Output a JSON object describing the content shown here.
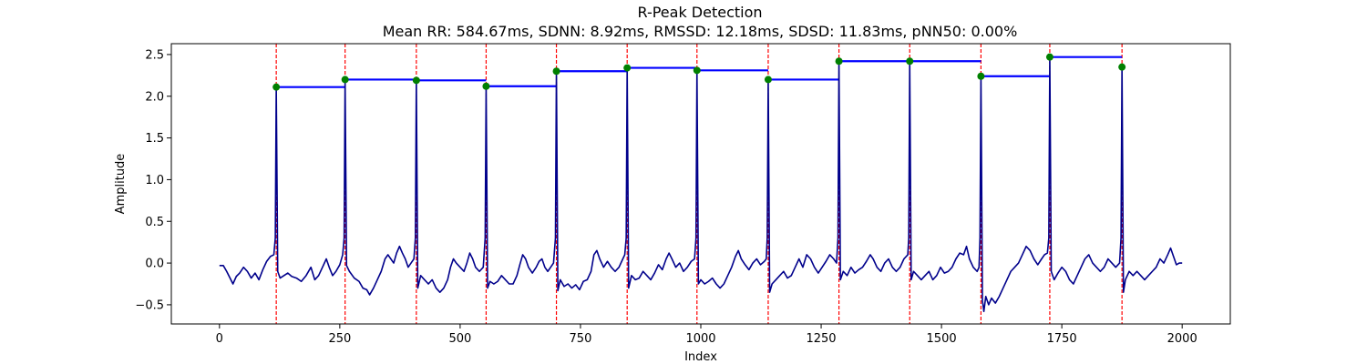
{
  "chart_data": {
    "type": "line",
    "title": "R-Peak Detection",
    "subtitle": "Mean RR: 584.67ms, SDNN: 8.92ms, RMSSD: 12.18ms, SDSD: 11.83ms, pNN50: 0.00%",
    "xlabel": "Index",
    "ylabel": "Amplitude",
    "xlim": [
      -100,
      2100
    ],
    "ylim": [
      -0.73,
      2.63
    ],
    "xticks": [
      0,
      250,
      500,
      750,
      1000,
      1250,
      1500,
      1750,
      2000
    ],
    "yticks": [
      -0.5,
      0.0,
      0.5,
      1.0,
      1.5,
      2.0,
      2.5
    ],
    "xtick_labels": [
      "0",
      "250",
      "500",
      "750",
      "1000",
      "1250",
      "1500",
      "1750",
      "2000"
    ],
    "ytick_labels": [
      "−0.5",
      "0.0",
      "0.5",
      "1.0",
      "1.5",
      "2.0",
      "2.5"
    ],
    "grid": false,
    "colors": {
      "signal": "#00008b",
      "peak_line": "#ff0000",
      "peak_marker": "#008000",
      "rr_segment": "#0000ff"
    },
    "r_peaks": {
      "x": [
        118,
        261,
        409,
        554,
        700,
        847,
        992,
        1140,
        1287,
        1434,
        1582,
        1725,
        1875
      ],
      "y": [
        2.11,
        2.2,
        2.19,
        2.12,
        2.3,
        2.34,
        2.31,
        2.2,
        2.42,
        2.42,
        2.24,
        2.47,
        2.35
      ]
    },
    "signal_points": [
      [
        0,
        -0.03
      ],
      [
        8,
        -0.03
      ],
      [
        15,
        -0.1
      ],
      [
        22,
        -0.18
      ],
      [
        28,
        -0.25
      ],
      [
        35,
        -0.16
      ],
      [
        42,
        -0.12
      ],
      [
        50,
        -0.05
      ],
      [
        58,
        -0.1
      ],
      [
        66,
        -0.18
      ],
      [
        74,
        -0.12
      ],
      [
        82,
        -0.2
      ],
      [
        90,
        -0.08
      ],
      [
        98,
        0.02
      ],
      [
        106,
        0.08
      ],
      [
        113,
        0.1
      ],
      [
        121,
        -0.1
      ],
      [
        126,
        -0.18
      ],
      [
        134,
        -0.15
      ],
      [
        142,
        -0.12
      ],
      [
        150,
        -0.16
      ],
      [
        160,
        -0.18
      ],
      [
        170,
        -0.22
      ],
      [
        180,
        -0.15
      ],
      [
        190,
        -0.05
      ],
      [
        198,
        -0.2
      ],
      [
        206,
        -0.15
      ],
      [
        214,
        -0.05
      ],
      [
        222,
        0.05
      ],
      [
        228,
        -0.05
      ],
      [
        235,
        -0.15
      ],
      [
        242,
        -0.1
      ],
      [
        250,
        -0.02
      ],
      [
        256,
        0.1
      ],
      [
        264,
        -0.03
      ],
      [
        270,
        -0.1
      ],
      [
        280,
        -0.18
      ],
      [
        290,
        -0.22
      ],
      [
        298,
        -0.3
      ],
      [
        306,
        -0.32
      ],
      [
        312,
        -0.38
      ],
      [
        320,
        -0.3
      ],
      [
        328,
        -0.2
      ],
      [
        336,
        -0.1
      ],
      [
        344,
        0.05
      ],
      [
        350,
        0.1
      ],
      [
        356,
        0.05
      ],
      [
        362,
        0.0
      ],
      [
        368,
        0.12
      ],
      [
        374,
        0.2
      ],
      [
        380,
        0.12
      ],
      [
        386,
        0.05
      ],
      [
        392,
        -0.05
      ],
      [
        398,
        0.0
      ],
      [
        404,
        0.05
      ],
      [
        412,
        -0.3
      ],
      [
        418,
        -0.15
      ],
      [
        426,
        -0.2
      ],
      [
        434,
        -0.25
      ],
      [
        442,
        -0.2
      ],
      [
        450,
        -0.3
      ],
      [
        458,
        -0.35
      ],
      [
        466,
        -0.3
      ],
      [
        474,
        -0.2
      ],
      [
        480,
        -0.05
      ],
      [
        486,
        0.05
      ],
      [
        492,
        0.0
      ],
      [
        500,
        -0.05
      ],
      [
        508,
        -0.1
      ],
      [
        514,
        0.0
      ],
      [
        520,
        0.12
      ],
      [
        526,
        0.05
      ],
      [
        532,
        -0.05
      ],
      [
        540,
        -0.1
      ],
      [
        548,
        -0.05
      ],
      [
        557,
        -0.3
      ],
      [
        562,
        -0.22
      ],
      [
        570,
        -0.25
      ],
      [
        578,
        -0.22
      ],
      [
        586,
        -0.15
      ],
      [
        594,
        -0.2
      ],
      [
        602,
        -0.25
      ],
      [
        610,
        -0.25
      ],
      [
        618,
        -0.15
      ],
      [
        624,
        -0.02
      ],
      [
        630,
        0.1
      ],
      [
        636,
        0.05
      ],
      [
        642,
        -0.05
      ],
      [
        650,
        -0.12
      ],
      [
        658,
        -0.05
      ],
      [
        664,
        0.02
      ],
      [
        670,
        0.05
      ],
      [
        676,
        -0.05
      ],
      [
        682,
        -0.1
      ],
      [
        688,
        -0.05
      ],
      [
        694,
        0.0
      ],
      [
        703,
        -0.33
      ],
      [
        708,
        -0.2
      ],
      [
        716,
        -0.28
      ],
      [
        724,
        -0.25
      ],
      [
        732,
        -0.3
      ],
      [
        740,
        -0.26
      ],
      [
        748,
        -0.32
      ],
      [
        756,
        -0.22
      ],
      [
        764,
        -0.2
      ],
      [
        772,
        -0.1
      ],
      [
        778,
        0.1
      ],
      [
        784,
        0.15
      ],
      [
        790,
        0.05
      ],
      [
        798,
        -0.05
      ],
      [
        806,
        0.02
      ],
      [
        814,
        -0.05
      ],
      [
        822,
        -0.1
      ],
      [
        830,
        -0.05
      ],
      [
        838,
        0.05
      ],
      [
        842,
        0.1
      ],
      [
        850,
        -0.3
      ],
      [
        856,
        -0.15
      ],
      [
        864,
        -0.2
      ],
      [
        872,
        -0.18
      ],
      [
        880,
        -0.1
      ],
      [
        888,
        -0.15
      ],
      [
        896,
        -0.2
      ],
      [
        904,
        -0.12
      ],
      [
        912,
        -0.02
      ],
      [
        920,
        -0.08
      ],
      [
        928,
        0.05
      ],
      [
        934,
        0.12
      ],
      [
        940,
        0.05
      ],
      [
        948,
        -0.05
      ],
      [
        956,
        0.0
      ],
      [
        964,
        -0.1
      ],
      [
        972,
        -0.05
      ],
      [
        980,
        0.02
      ],
      [
        987,
        0.05
      ],
      [
        995,
        -0.25
      ],
      [
        1000,
        -0.2
      ],
      [
        1008,
        -0.25
      ],
      [
        1016,
        -0.22
      ],
      [
        1024,
        -0.18
      ],
      [
        1032,
        -0.25
      ],
      [
        1040,
        -0.3
      ],
      [
        1048,
        -0.25
      ],
      [
        1056,
        -0.15
      ],
      [
        1064,
        -0.05
      ],
      [
        1072,
        0.08
      ],
      [
        1078,
        0.15
      ],
      [
        1084,
        0.05
      ],
      [
        1092,
        -0.02
      ],
      [
        1100,
        -0.08
      ],
      [
        1108,
        0.0
      ],
      [
        1116,
        0.05
      ],
      [
        1124,
        -0.02
      ],
      [
        1132,
        0.02
      ],
      [
        1136,
        0.05
      ],
      [
        1143,
        -0.35
      ],
      [
        1148,
        -0.25
      ],
      [
        1156,
        -0.2
      ],
      [
        1164,
        -0.15
      ],
      [
        1172,
        -0.1
      ],
      [
        1180,
        -0.18
      ],
      [
        1188,
        -0.15
      ],
      [
        1196,
        -0.05
      ],
      [
        1204,
        0.05
      ],
      [
        1212,
        -0.05
      ],
      [
        1220,
        0.1
      ],
      [
        1228,
        0.05
      ],
      [
        1236,
        -0.05
      ],
      [
        1244,
        -0.12
      ],
      [
        1252,
        -0.05
      ],
      [
        1260,
        0.02
      ],
      [
        1268,
        0.1
      ],
      [
        1276,
        0.05
      ],
      [
        1282,
        0.0
      ],
      [
        1290,
        -0.2
      ],
      [
        1296,
        -0.1
      ],
      [
        1304,
        -0.15
      ],
      [
        1312,
        -0.05
      ],
      [
        1320,
        -0.12
      ],
      [
        1328,
        -0.08
      ],
      [
        1336,
        -0.05
      ],
      [
        1344,
        0.02
      ],
      [
        1352,
        0.1
      ],
      [
        1358,
        0.05
      ],
      [
        1366,
        -0.05
      ],
      [
        1374,
        -0.1
      ],
      [
        1382,
        0.0
      ],
      [
        1390,
        0.05
      ],
      [
        1398,
        -0.05
      ],
      [
        1406,
        -0.1
      ],
      [
        1414,
        -0.05
      ],
      [
        1422,
        0.05
      ],
      [
        1430,
        0.1
      ],
      [
        1437,
        -0.2
      ],
      [
        1442,
        -0.1
      ],
      [
        1450,
        -0.15
      ],
      [
        1458,
        -0.2
      ],
      [
        1466,
        -0.15
      ],
      [
        1474,
        -0.1
      ],
      [
        1482,
        -0.2
      ],
      [
        1490,
        -0.15
      ],
      [
        1498,
        -0.05
      ],
      [
        1506,
        -0.12
      ],
      [
        1514,
        -0.1
      ],
      [
        1522,
        -0.05
      ],
      [
        1530,
        0.05
      ],
      [
        1538,
        0.12
      ],
      [
        1546,
        0.1
      ],
      [
        1552,
        0.2
      ],
      [
        1558,
        0.05
      ],
      [
        1566,
        -0.05
      ],
      [
        1574,
        -0.1
      ],
      [
        1578,
        -0.05
      ],
      [
        1585,
        -0.45
      ],
      [
        1588,
        -0.58
      ],
      [
        1592,
        -0.4
      ],
      [
        1598,
        -0.5
      ],
      [
        1604,
        -0.42
      ],
      [
        1612,
        -0.48
      ],
      [
        1620,
        -0.4
      ],
      [
        1628,
        -0.3
      ],
      [
        1636,
        -0.2
      ],
      [
        1644,
        -0.1
      ],
      [
        1652,
        -0.05
      ],
      [
        1660,
        0.0
      ],
      [
        1668,
        0.1
      ],
      [
        1676,
        0.2
      ],
      [
        1684,
        0.15
      ],
      [
        1692,
        0.05
      ],
      [
        1700,
        -0.02
      ],
      [
        1708,
        0.05
      ],
      [
        1714,
        0.1
      ],
      [
        1720,
        0.12
      ],
      [
        1728,
        -0.1
      ],
      [
        1734,
        -0.2
      ],
      [
        1742,
        -0.12
      ],
      [
        1750,
        -0.05
      ],
      [
        1758,
        -0.1
      ],
      [
        1766,
        -0.2
      ],
      [
        1774,
        -0.25
      ],
      [
        1782,
        -0.15
      ],
      [
        1790,
        -0.05
      ],
      [
        1798,
        0.05
      ],
      [
        1806,
        0.1
      ],
      [
        1814,
        0.0
      ],
      [
        1822,
        -0.05
      ],
      [
        1830,
        -0.1
      ],
      [
        1838,
        -0.05
      ],
      [
        1846,
        0.05
      ],
      [
        1854,
        0.0
      ],
      [
        1862,
        -0.05
      ],
      [
        1870,
        0.0
      ],
      [
        1878,
        -0.35
      ],
      [
        1882,
        -0.2
      ],
      [
        1890,
        -0.1
      ],
      [
        1898,
        -0.15
      ],
      [
        1906,
        -0.1
      ],
      [
        1914,
        -0.15
      ],
      [
        1922,
        -0.2
      ],
      [
        1930,
        -0.15
      ],
      [
        1938,
        -0.1
      ],
      [
        1946,
        -0.05
      ],
      [
        1954,
        0.05
      ],
      [
        1962,
        0.0
      ],
      [
        1970,
        0.1
      ],
      [
        1976,
        0.18
      ],
      [
        1982,
        0.08
      ],
      [
        1988,
        -0.02
      ],
      [
        1994,
        0.0
      ],
      [
        2000,
        0.0
      ]
    ]
  }
}
